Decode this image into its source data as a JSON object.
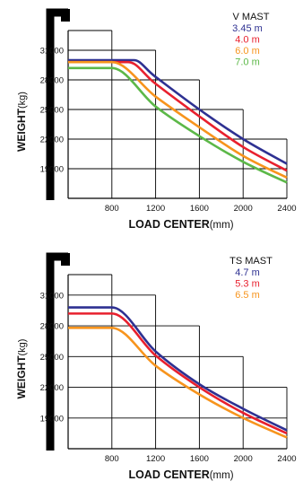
{
  "chart_data": [
    {
      "type": "line",
      "legend_title": "V  MAST",
      "xlabel": "LOAD CENTER",
      "xlabel_unit": "(mm)",
      "ylabel": "WEIGHT",
      "ylabel_unit": "(kg)",
      "x_ticks": [
        800,
        1200,
        1600,
        2000,
        2400
      ],
      "y_ticks": [
        19000,
        22000,
        25000,
        28000,
        31000
      ],
      "xlim": [
        400,
        2400
      ],
      "ylim": [
        16000,
        33000
      ],
      "legend_position": "top-right",
      "series": [
        {
          "name": "3.45 m",
          "color": "#2e3192",
          "x": [
            400,
            1000,
            1200,
            1600,
            2000,
            2400
          ],
          "y": [
            30000,
            30000,
            28300,
            25000,
            22000,
            19500
          ]
        },
        {
          "name": "4.0 m",
          "color": "#e8202e",
          "x": [
            400,
            950,
            1200,
            1600,
            2000,
            2400
          ],
          "y": [
            29800,
            29800,
            27600,
            24300,
            21200,
            18800
          ]
        },
        {
          "name": "6.0 m",
          "color": "#f7941d",
          "x": [
            400,
            800,
            1200,
            1600,
            2000,
            2400
          ],
          "y": [
            29800,
            29800,
            26300,
            23200,
            20300,
            18100
          ]
        },
        {
          "name": "7.0 m",
          "color": "#5cb848",
          "x": [
            400,
            800,
            1200,
            1600,
            2000,
            2400
          ],
          "y": [
            29200,
            29200,
            25300,
            22300,
            19700,
            17600
          ]
        }
      ]
    },
    {
      "type": "line",
      "legend_title": "TS  MAST",
      "xlabel": "LOAD CENTER",
      "xlabel_unit": "(mm)",
      "ylabel": "WEIGHT",
      "ylabel_unit": "(kg)",
      "x_ticks": [
        800,
        1200,
        1600,
        2000,
        2400
      ],
      "y_ticks": [
        19000,
        22000,
        25000,
        28000,
        31000
      ],
      "xlim": [
        400,
        2400
      ],
      "ylim": [
        16000,
        33000
      ],
      "legend_position": "top-right",
      "series": [
        {
          "name": "4.7 m",
          "color": "#2e3192",
          "x": [
            400,
            800,
            1200,
            1600,
            2000,
            2400
          ],
          "y": [
            29800,
            29800,
            25500,
            22300,
            19900,
            17800
          ]
        },
        {
          "name": "5.3 m",
          "color": "#e8202e",
          "x": [
            400,
            800,
            1200,
            1600,
            2000,
            2400
          ],
          "y": [
            29200,
            29200,
            25100,
            22000,
            19500,
            17500
          ]
        },
        {
          "name": "6.5 m",
          "color": "#f7941d",
          "x": [
            400,
            800,
            1200,
            1600,
            2000,
            2400
          ],
          "y": [
            27800,
            27800,
            24100,
            21300,
            19000,
            17100
          ]
        }
      ]
    }
  ]
}
